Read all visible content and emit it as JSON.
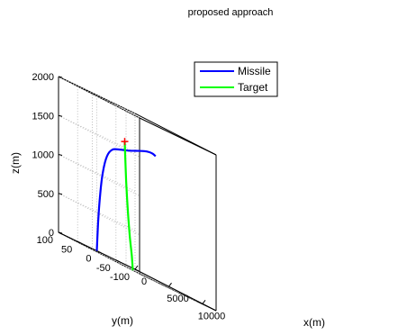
{
  "chart_data": {
    "type": "line",
    "title": "proposed approach",
    "xlabel": "x(m)",
    "ylabel": "y(m)",
    "zlabel": "z(m)",
    "xlim": [
      0,
      12000
    ],
    "ylim": [
      -100,
      100
    ],
    "zlim": [
      0,
      2000
    ],
    "x_ticks": [
      "0",
      "5000",
      "10000"
    ],
    "y_ticks": [
      "-100",
      "-50",
      "0",
      "50",
      "100"
    ],
    "z_ticks": [
      "0",
      "500",
      "1000",
      "1500",
      "2000"
    ],
    "grid": true,
    "legend_position": "top-center",
    "series": [
      {
        "name": "Missile",
        "color": "#0000ff",
        "points": [
          {
            "x": 0,
            "y": 0,
            "z": 0
          },
          {
            "x": 200,
            "y": 0,
            "z": 380
          },
          {
            "x": 500,
            "y": 0,
            "z": 750
          },
          {
            "x": 900,
            "y": 0,
            "z": 1050
          },
          {
            "x": 1500,
            "y": 0,
            "z": 1280
          },
          {
            "x": 2300,
            "y": 0,
            "z": 1400
          },
          {
            "x": 3400,
            "y": 0,
            "z": 1450
          },
          {
            "x": 4600,
            "y": 0,
            "z": 1490
          },
          {
            "x": 5800,
            "y": 0,
            "z": 1540
          },
          {
            "x": 7000,
            "y": 0,
            "z": 1590
          },
          {
            "x": 7800,
            "y": 0,
            "z": 1612
          },
          {
            "x": 8300,
            "y": 0,
            "z": 1613
          },
          {
            "x": 8700,
            "y": 0,
            "z": 1600
          }
        ]
      },
      {
        "name": "Target",
        "color": "#00ff00",
        "points": [
          {
            "x": 11000,
            "y": 100,
            "z": 0
          },
          {
            "x": 10850,
            "y": 100,
            "z": 180
          },
          {
            "x": 10550,
            "y": 100,
            "z": 420
          },
          {
            "x": 10250,
            "y": 100,
            "z": 750
          },
          {
            "x": 10020,
            "y": 100,
            "z": 1100
          },
          {
            "x": 9880,
            "y": 100,
            "z": 1400
          },
          {
            "x": 9800,
            "y": 100,
            "z": 1600
          }
        ]
      }
    ],
    "intercept_marker": {
      "x": 9800,
      "y": 100,
      "z": 1600,
      "color": "#ff0000"
    }
  }
}
